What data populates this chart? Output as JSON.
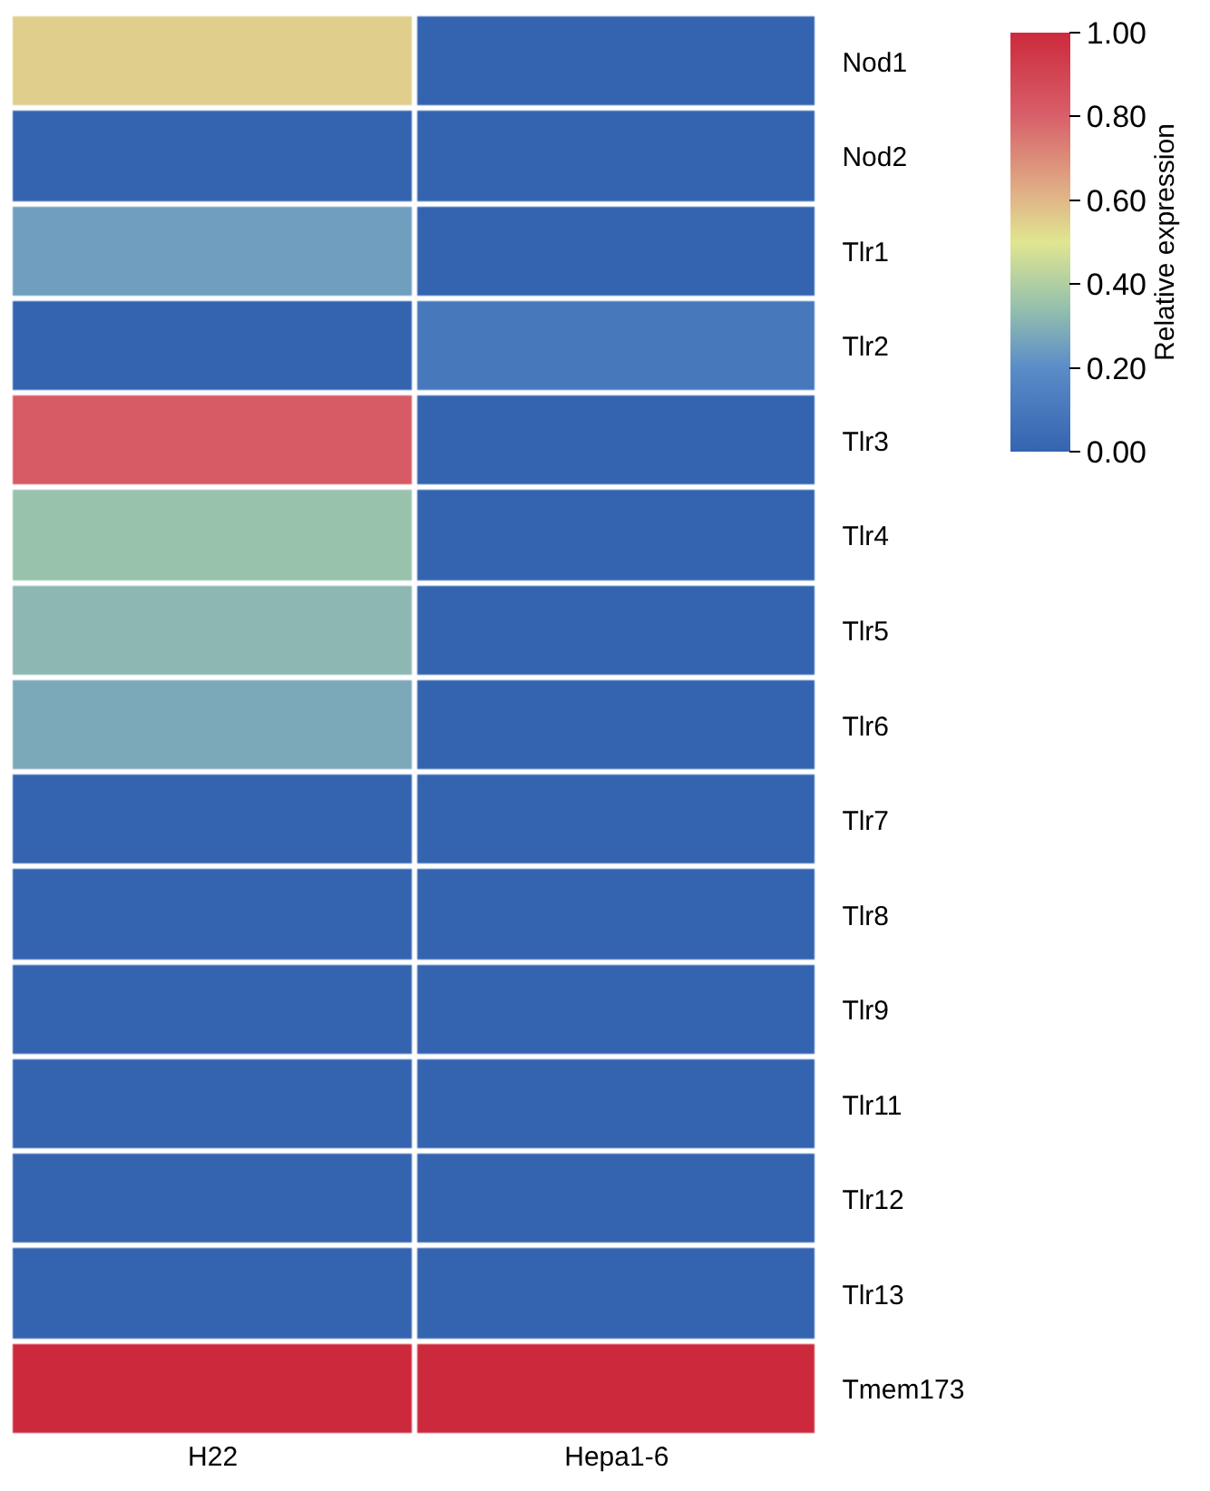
{
  "chart_data": {
    "type": "heatmap",
    "categories": [
      "H22",
      "Hepa1-6"
    ],
    "y_categories": [
      "Nod1",
      "Nod2",
      "Tlr1",
      "Tlr2",
      "Tlr3",
      "Tlr4",
      "Tlr5",
      "Tlr6",
      "Tlr7",
      "Tlr8",
      "Tlr9",
      "Tlr11",
      "Tlr12",
      "Tlr13",
      "Tmem173"
    ],
    "cells": [
      [
        0.55,
        0
      ],
      [
        0,
        0
      ],
      [
        0.25,
        0
      ],
      [
        0,
        0.1
      ],
      [
        0.82,
        0
      ],
      [
        0.35,
        0
      ],
      [
        0.32,
        0
      ],
      [
        0.28,
        0
      ],
      [
        0,
        0
      ],
      [
        0,
        0
      ],
      [
        0,
        0
      ],
      [
        0,
        0
      ],
      [
        0,
        0
      ],
      [
        0,
        0
      ],
      [
        1,
        1
      ]
    ],
    "clabel": "Relative expression",
    "clim": [
      0,
      1
    ],
    "cticks": [
      {
        "value": 0,
        "label": "0.00"
      },
      {
        "value": 0.2,
        "label": "0.20"
      },
      {
        "value": 0.4,
        "label": "0.40"
      },
      {
        "value": 0.6,
        "label": "0.60"
      },
      {
        "value": 0.8,
        "label": "0.80"
      },
      {
        "value": 1,
        "label": "1.00"
      }
    ]
  }
}
